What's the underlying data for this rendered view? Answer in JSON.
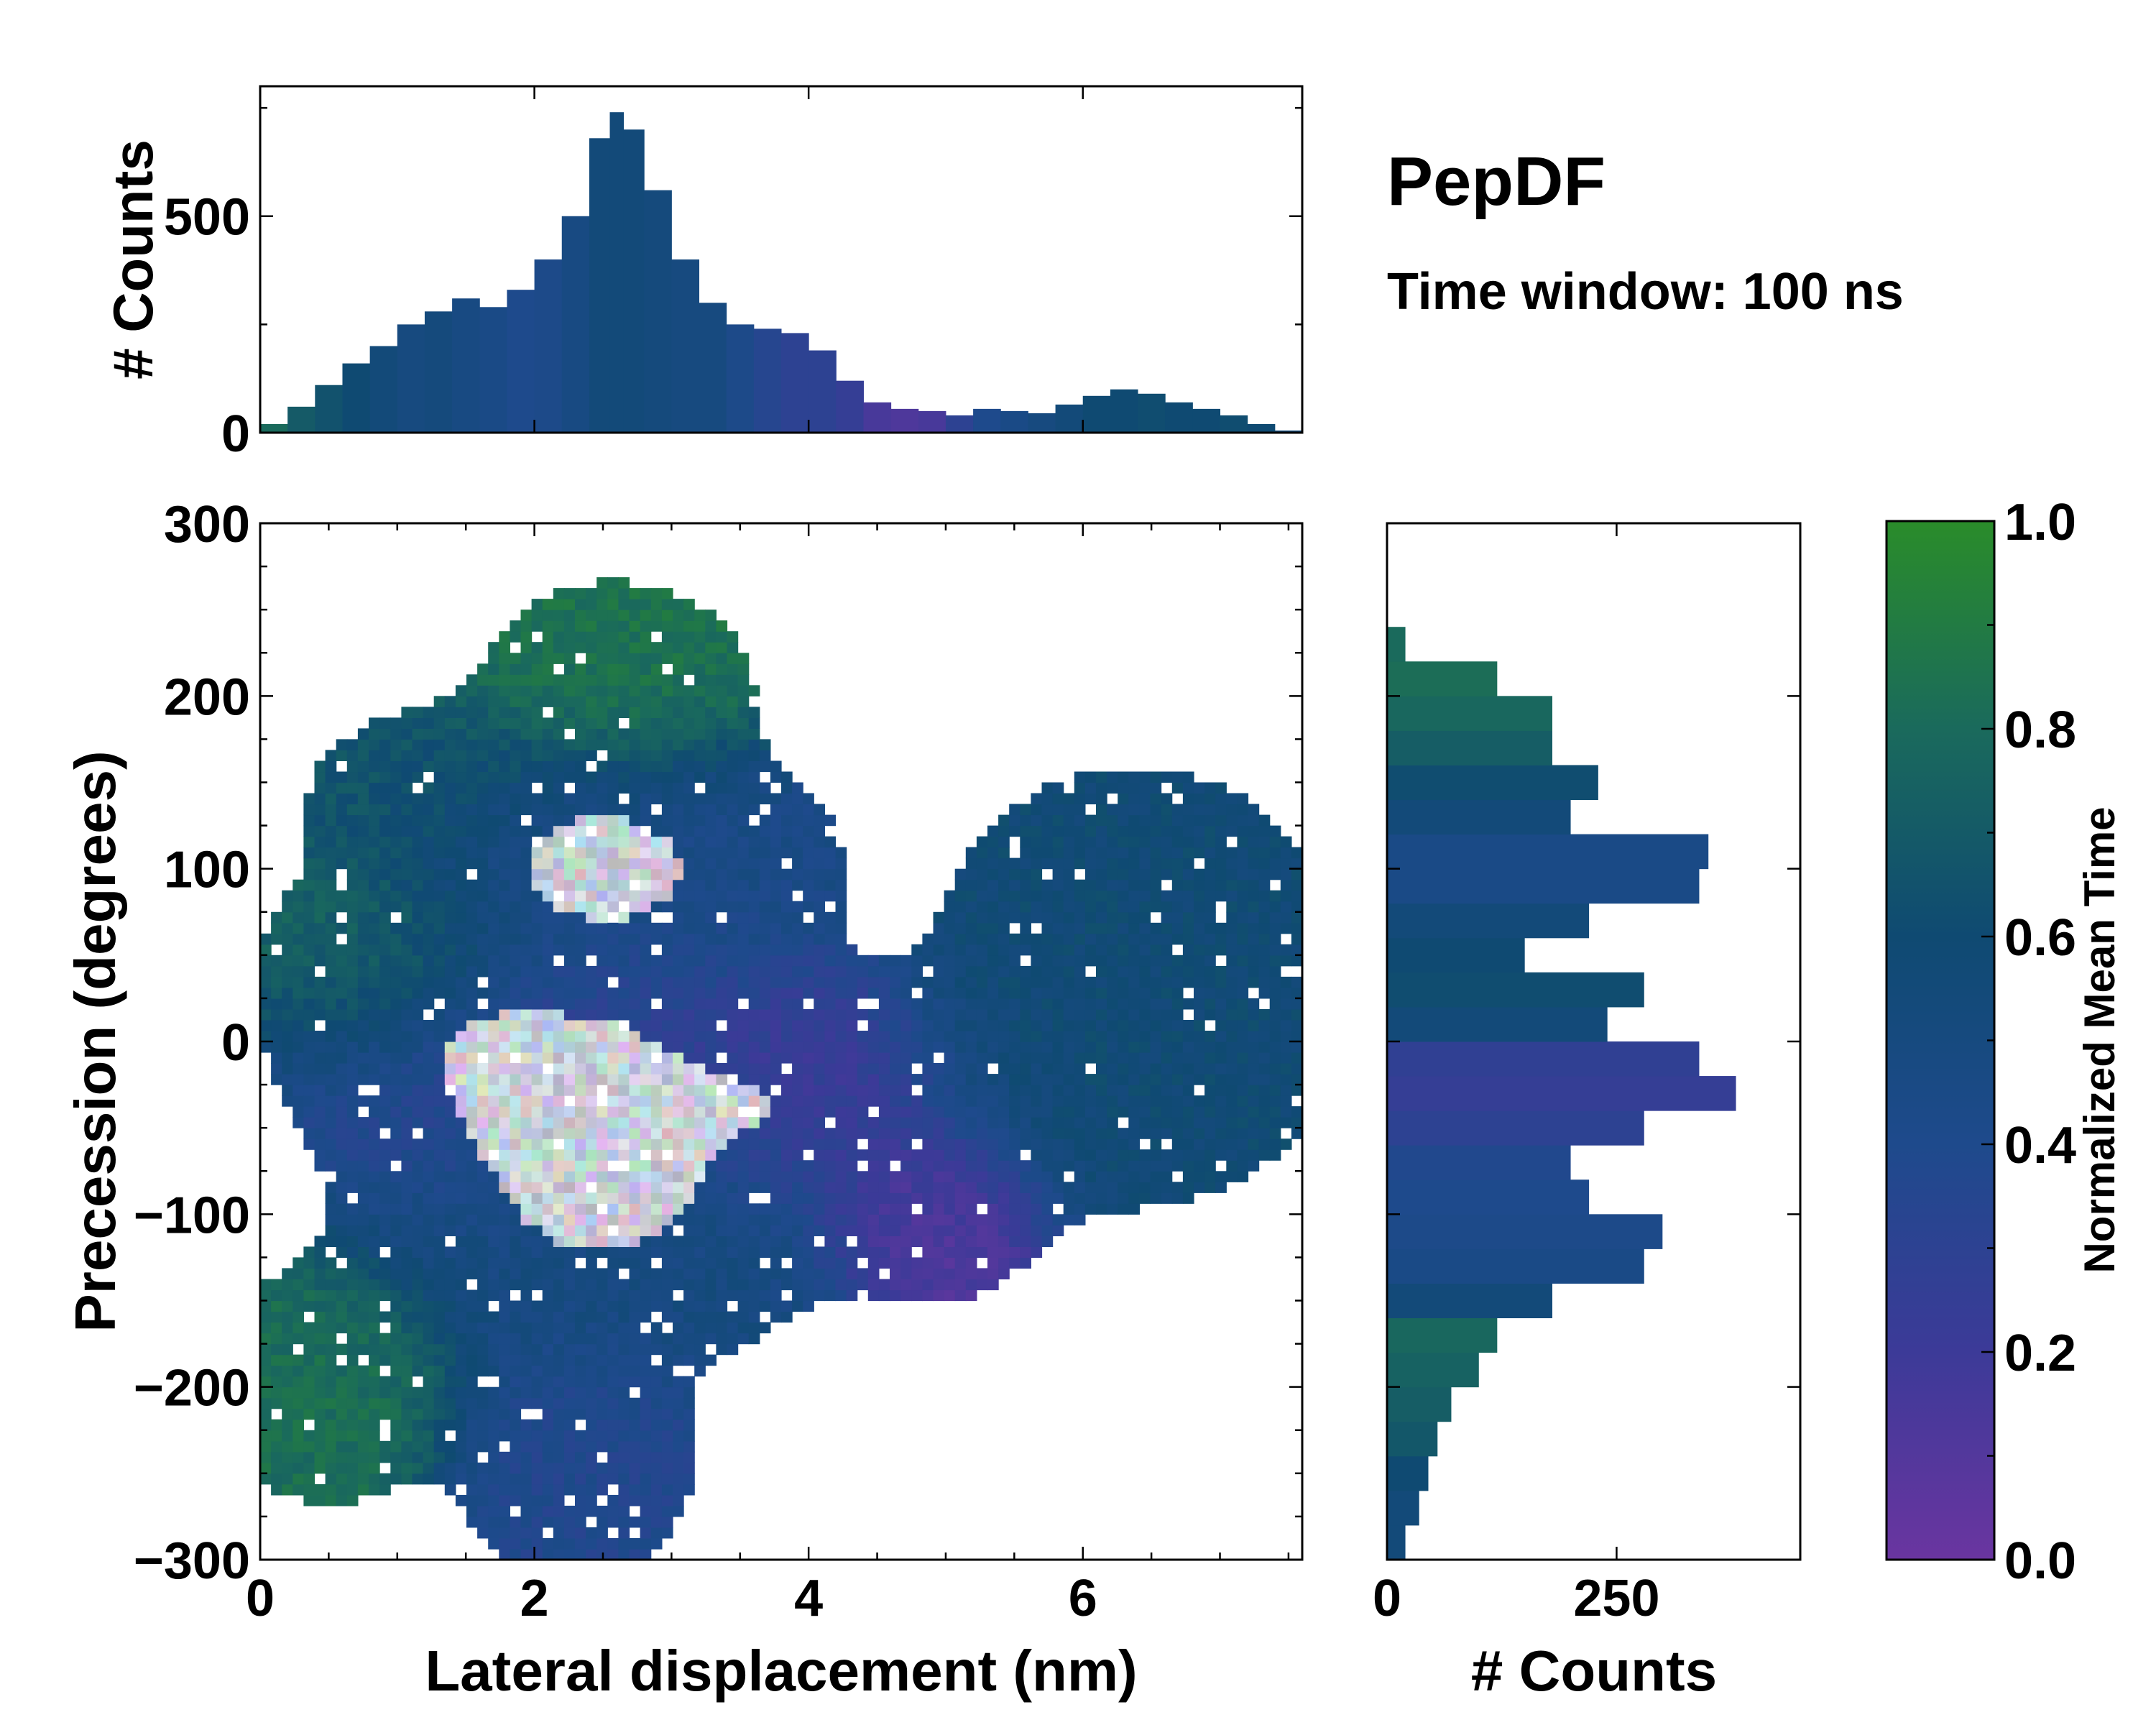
{
  "title": "PepDF",
  "subtitle": "Time window: 100 ns",
  "chart_data": [
    {
      "id": "main_heatmap",
      "type": "heatmap",
      "xlabel": "Lateral displacement (nm)",
      "ylabel": "Precession (degrees)",
      "xlim": [
        0,
        7.6
      ],
      "ylim": [
        -300,
        300
      ],
      "xticks": [
        0,
        2,
        4,
        6
      ],
      "yticks": [
        -300,
        -200,
        -100,
        0,
        100,
        200,
        300
      ],
      "xtick_labels": [
        "0",
        "2",
        "4",
        "6"
      ],
      "ytick_labels": [
        "−300",
        "−200",
        "−100",
        "0",
        "100",
        "200",
        "300"
      ],
      "colorbar_label": "Normalized Mean Time",
      "color_range": [
        0.0,
        1.0
      ],
      "density_clusters": [
        {
          "x": 2.6,
          "y": 205,
          "sx": 0.55,
          "sy": 35,
          "w": 0.55,
          "t": 0.85
        },
        {
          "x": 1.3,
          "y": 145,
          "sx": 0.6,
          "sy": 30,
          "w": 0.35,
          "t": 0.68
        },
        {
          "x": 2.6,
          "y": 100,
          "sx": 0.8,
          "sy": 40,
          "w": 1.0,
          "t": 0.45
        },
        {
          "x": 1.0,
          "y": 40,
          "sx": 0.6,
          "sy": 40,
          "w": 0.45,
          "t": 0.78
        },
        {
          "x": 2.2,
          "y": -20,
          "sx": 0.9,
          "sy": 40,
          "w": 1.0,
          "t": 0.28
        },
        {
          "x": 4.0,
          "y": -30,
          "sx": 0.6,
          "sy": 35,
          "w": 0.55,
          "t": 0.18
        },
        {
          "x": 2.5,
          "y": -100,
          "sx": 0.9,
          "sy": 45,
          "w": 0.9,
          "t": 0.5
        },
        {
          "x": 4.9,
          "y": -100,
          "sx": 0.45,
          "sy": 30,
          "w": 0.45,
          "t": 0.08
        },
        {
          "x": 0.5,
          "y": -200,
          "sx": 0.5,
          "sy": 40,
          "w": 0.5,
          "t": 0.82
        },
        {
          "x": 2.3,
          "y": -245,
          "sx": 0.5,
          "sy": 40,
          "w": 0.5,
          "t": 0.38
        },
        {
          "x": 6.4,
          "y": 90,
          "sx": 0.7,
          "sy": 40,
          "w": 0.5,
          "t": 0.58
        },
        {
          "x": 6.2,
          "y": -10,
          "sx": 0.9,
          "sy": 50,
          "w": 0.55,
          "t": 0.58
        }
      ]
    },
    {
      "id": "top_histogram",
      "type": "bar",
      "ylabel": "# Counts",
      "xlim": [
        0,
        7.6
      ],
      "ylim": [
        0,
        800
      ],
      "yticks": [
        0,
        500
      ],
      "ytick_labels": [
        "0",
        "500"
      ],
      "x": [
        0.1,
        0.3,
        0.5,
        0.7,
        0.9,
        1.1,
        1.3,
        1.5,
        1.7,
        1.9,
        2.1,
        2.3,
        2.5,
        2.6,
        2.7,
        2.9,
        3.1,
        3.3,
        3.5,
        3.7,
        3.9,
        4.1,
        4.3,
        4.5,
        4.7,
        4.9,
        5.1,
        5.3,
        5.5,
        5.7,
        5.9,
        6.1,
        6.3,
        6.5,
        6.7,
        6.9,
        7.1,
        7.3,
        7.5
      ],
      "values": [
        20,
        60,
        110,
        160,
        200,
        250,
        280,
        310,
        290,
        330,
        400,
        500,
        680,
        740,
        700,
        560,
        400,
        300,
        250,
        240,
        230,
        190,
        120,
        70,
        55,
        50,
        40,
        55,
        50,
        45,
        65,
        85,
        100,
        90,
        70,
        55,
        40,
        20,
        5
      ],
      "mean_time": [
        0.8,
        0.7,
        0.65,
        0.6,
        0.55,
        0.5,
        0.52,
        0.48,
        0.45,
        0.4,
        0.42,
        0.48,
        0.55,
        0.55,
        0.55,
        0.52,
        0.5,
        0.5,
        0.42,
        0.35,
        0.3,
        0.3,
        0.25,
        0.15,
        0.12,
        0.15,
        0.3,
        0.4,
        0.45,
        0.5,
        0.55,
        0.6,
        0.6,
        0.62,
        0.6,
        0.6,
        0.62,
        0.6,
        0.55
      ]
    },
    {
      "id": "right_histogram",
      "type": "bar",
      "orientation": "horizontal",
      "xlabel": "# Counts",
      "xlim": [
        0,
        450
      ],
      "ylim": [
        -300,
        300
      ],
      "xticks": [
        0,
        250
      ],
      "xtick_labels": [
        "0",
        "250"
      ],
      "y": [
        -290,
        -270,
        -250,
        -230,
        -210,
        -190,
        -170,
        -150,
        -130,
        -110,
        -90,
        -70,
        -50,
        -30,
        -10,
        10,
        30,
        50,
        70,
        90,
        110,
        130,
        150,
        170,
        190,
        210,
        230
      ],
      "values": [
        20,
        35,
        45,
        55,
        70,
        100,
        120,
        180,
        280,
        300,
        220,
        200,
        280,
        380,
        340,
        240,
        280,
        150,
        220,
        340,
        350,
        200,
        230,
        180,
        180,
        120,
        20
      ],
      "mean_time": [
        0.55,
        0.55,
        0.6,
        0.68,
        0.72,
        0.75,
        0.78,
        0.55,
        0.45,
        0.42,
        0.4,
        0.38,
        0.3,
        0.25,
        0.28,
        0.55,
        0.62,
        0.6,
        0.55,
        0.45,
        0.45,
        0.55,
        0.62,
        0.72,
        0.78,
        0.82,
        0.8
      ]
    }
  ],
  "colorbar": {
    "label": "Normalized Mean Time",
    "ticks": [
      0.0,
      0.2,
      0.4,
      0.6,
      0.8,
      1.0
    ],
    "tick_labels": [
      "0.0",
      "0.2",
      "0.4",
      "0.6",
      "0.8",
      "1.0"
    ],
    "colors": [
      "#6a35a0",
      "#3c3a98",
      "#1e4a8c",
      "#0f4a72",
      "#1a6a5c",
      "#2a8c2a"
    ]
  }
}
